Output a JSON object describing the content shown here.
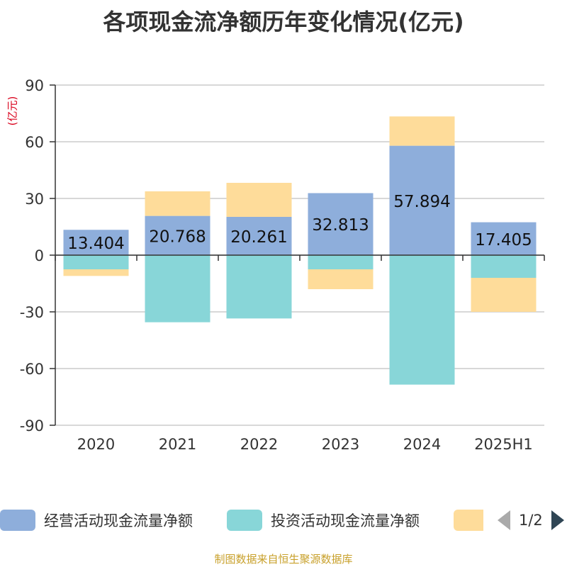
{
  "title": "各项现金流净额历年变化情况(亿元)",
  "unit_label": "(亿元)",
  "source": "制图数据来自恒生聚源数据库",
  "pager": {
    "text": "1/2"
  },
  "chart_data": {
    "type": "bar",
    "stacked": true,
    "categories": [
      "2020",
      "2021",
      "2022",
      "2023",
      "2024",
      "2025H1"
    ],
    "ylim": [
      -90,
      90
    ],
    "yticks": [
      90,
      60,
      30,
      0,
      -30,
      -60,
      -90
    ],
    "grid": true,
    "legend_position": "bottom",
    "series": [
      {
        "name": "经营活动现金流量净额",
        "color": "#8eaedb",
        "values": [
          13.404,
          20.768,
          20.261,
          32.813,
          57.894,
          17.405
        ],
        "labels": [
          "13.404",
          "20.768",
          "20.261",
          "32.813",
          "57.894",
          "17.405"
        ]
      },
      {
        "name": "投资活动现金流量净额",
        "color": "#88d6d8",
        "values": [
          -7.5,
          -35.5,
          -33.5,
          -7.5,
          -68.5,
          -12.0
        ]
      },
      {
        "name": "",
        "color": "#fedc9a",
        "values": [
          -3.5,
          13.0,
          18.0,
          -10.5,
          15.5,
          -18.0
        ]
      }
    ]
  }
}
